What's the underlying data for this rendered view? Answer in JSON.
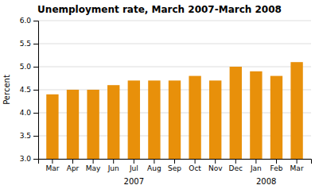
{
  "chart_data": {
    "type": "bar",
    "title": "Unemployment rate, March 2007-March 2008",
    "ylabel": "Percent",
    "categories": [
      "Mar",
      "Apr",
      "May",
      "Jun",
      "Jul",
      "Aug",
      "Sep",
      "Oct",
      "Nov",
      "Dec",
      "Jan",
      "Feb",
      "Mar"
    ],
    "values": [
      4.4,
      4.5,
      4.5,
      4.6,
      4.7,
      4.7,
      4.7,
      4.8,
      4.7,
      5.0,
      4.9,
      4.8,
      5.1
    ],
    "color": "#E8900A",
    "ylim": [
      3.0,
      6.0
    ],
    "yticks": [
      {
        "value": 3.0,
        "label": "3.0"
      },
      {
        "value": 3.5,
        "label": "3.5"
      },
      {
        "value": 4.0,
        "label": "4.0"
      },
      {
        "value": 4.5,
        "label": "4.5"
      },
      {
        "value": 5.0,
        "label": "5.0"
      },
      {
        "value": 5.5,
        "label": "5.5"
      },
      {
        "value": 6.0,
        "label": "6.0"
      }
    ],
    "grid": true,
    "annotations": [
      {
        "text": "2007",
        "x": 4.0
      },
      {
        "text": "2008",
        "x": 10.5
      }
    ]
  }
}
